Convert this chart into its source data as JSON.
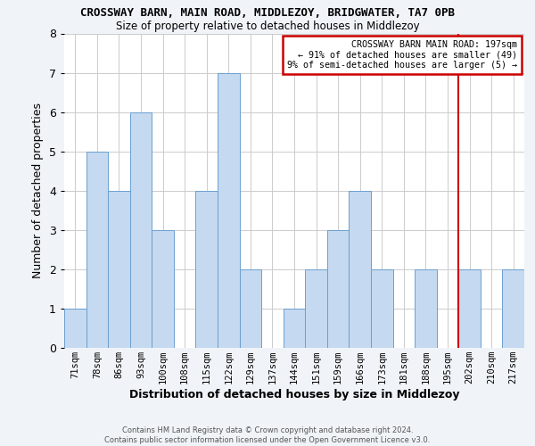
{
  "title": "CROSSWAY BARN, MAIN ROAD, MIDDLEZOY, BRIDGWATER, TA7 0PB",
  "subtitle": "Size of property relative to detached houses in Middlezoy",
  "xlabel": "Distribution of detached houses by size in Middlezoy",
  "ylabel": "Number of detached properties",
  "bin_labels": [
    "71sqm",
    "78sqm",
    "86sqm",
    "93sqm",
    "100sqm",
    "108sqm",
    "115sqm",
    "122sqm",
    "129sqm",
    "137sqm",
    "144sqm",
    "151sqm",
    "159sqm",
    "166sqm",
    "173sqm",
    "181sqm",
    "188sqm",
    "195sqm",
    "202sqm",
    "210sqm",
    "217sqm"
  ],
  "bar_heights": [
    1,
    5,
    4,
    6,
    3,
    0,
    4,
    7,
    2,
    0,
    1,
    2,
    3,
    4,
    2,
    0,
    2,
    0,
    2,
    0,
    2
  ],
  "bar_color": "#c5d9f0",
  "bar_edge_color": "#6ca0d0",
  "vline_index": 17,
  "vline_color": "#cc0000",
  "ylim": [
    0,
    8
  ],
  "yticks": [
    0,
    1,
    2,
    3,
    4,
    5,
    6,
    7,
    8
  ],
  "annotation_text": "CROSSWAY BARN MAIN ROAD: 197sqm\n← 91% of detached houses are smaller (49)\n9% of semi-detached houses are larger (5) →",
  "annotation_box_color": "#cc0000",
  "footer_line1": "Contains HM Land Registry data © Crown copyright and database right 2024.",
  "footer_line2": "Contains public sector information licensed under the Open Government Licence v3.0.",
  "background_color": "#f0f4f8",
  "plot_bg_color": "#ffffff",
  "grid_color": "#cccccc"
}
